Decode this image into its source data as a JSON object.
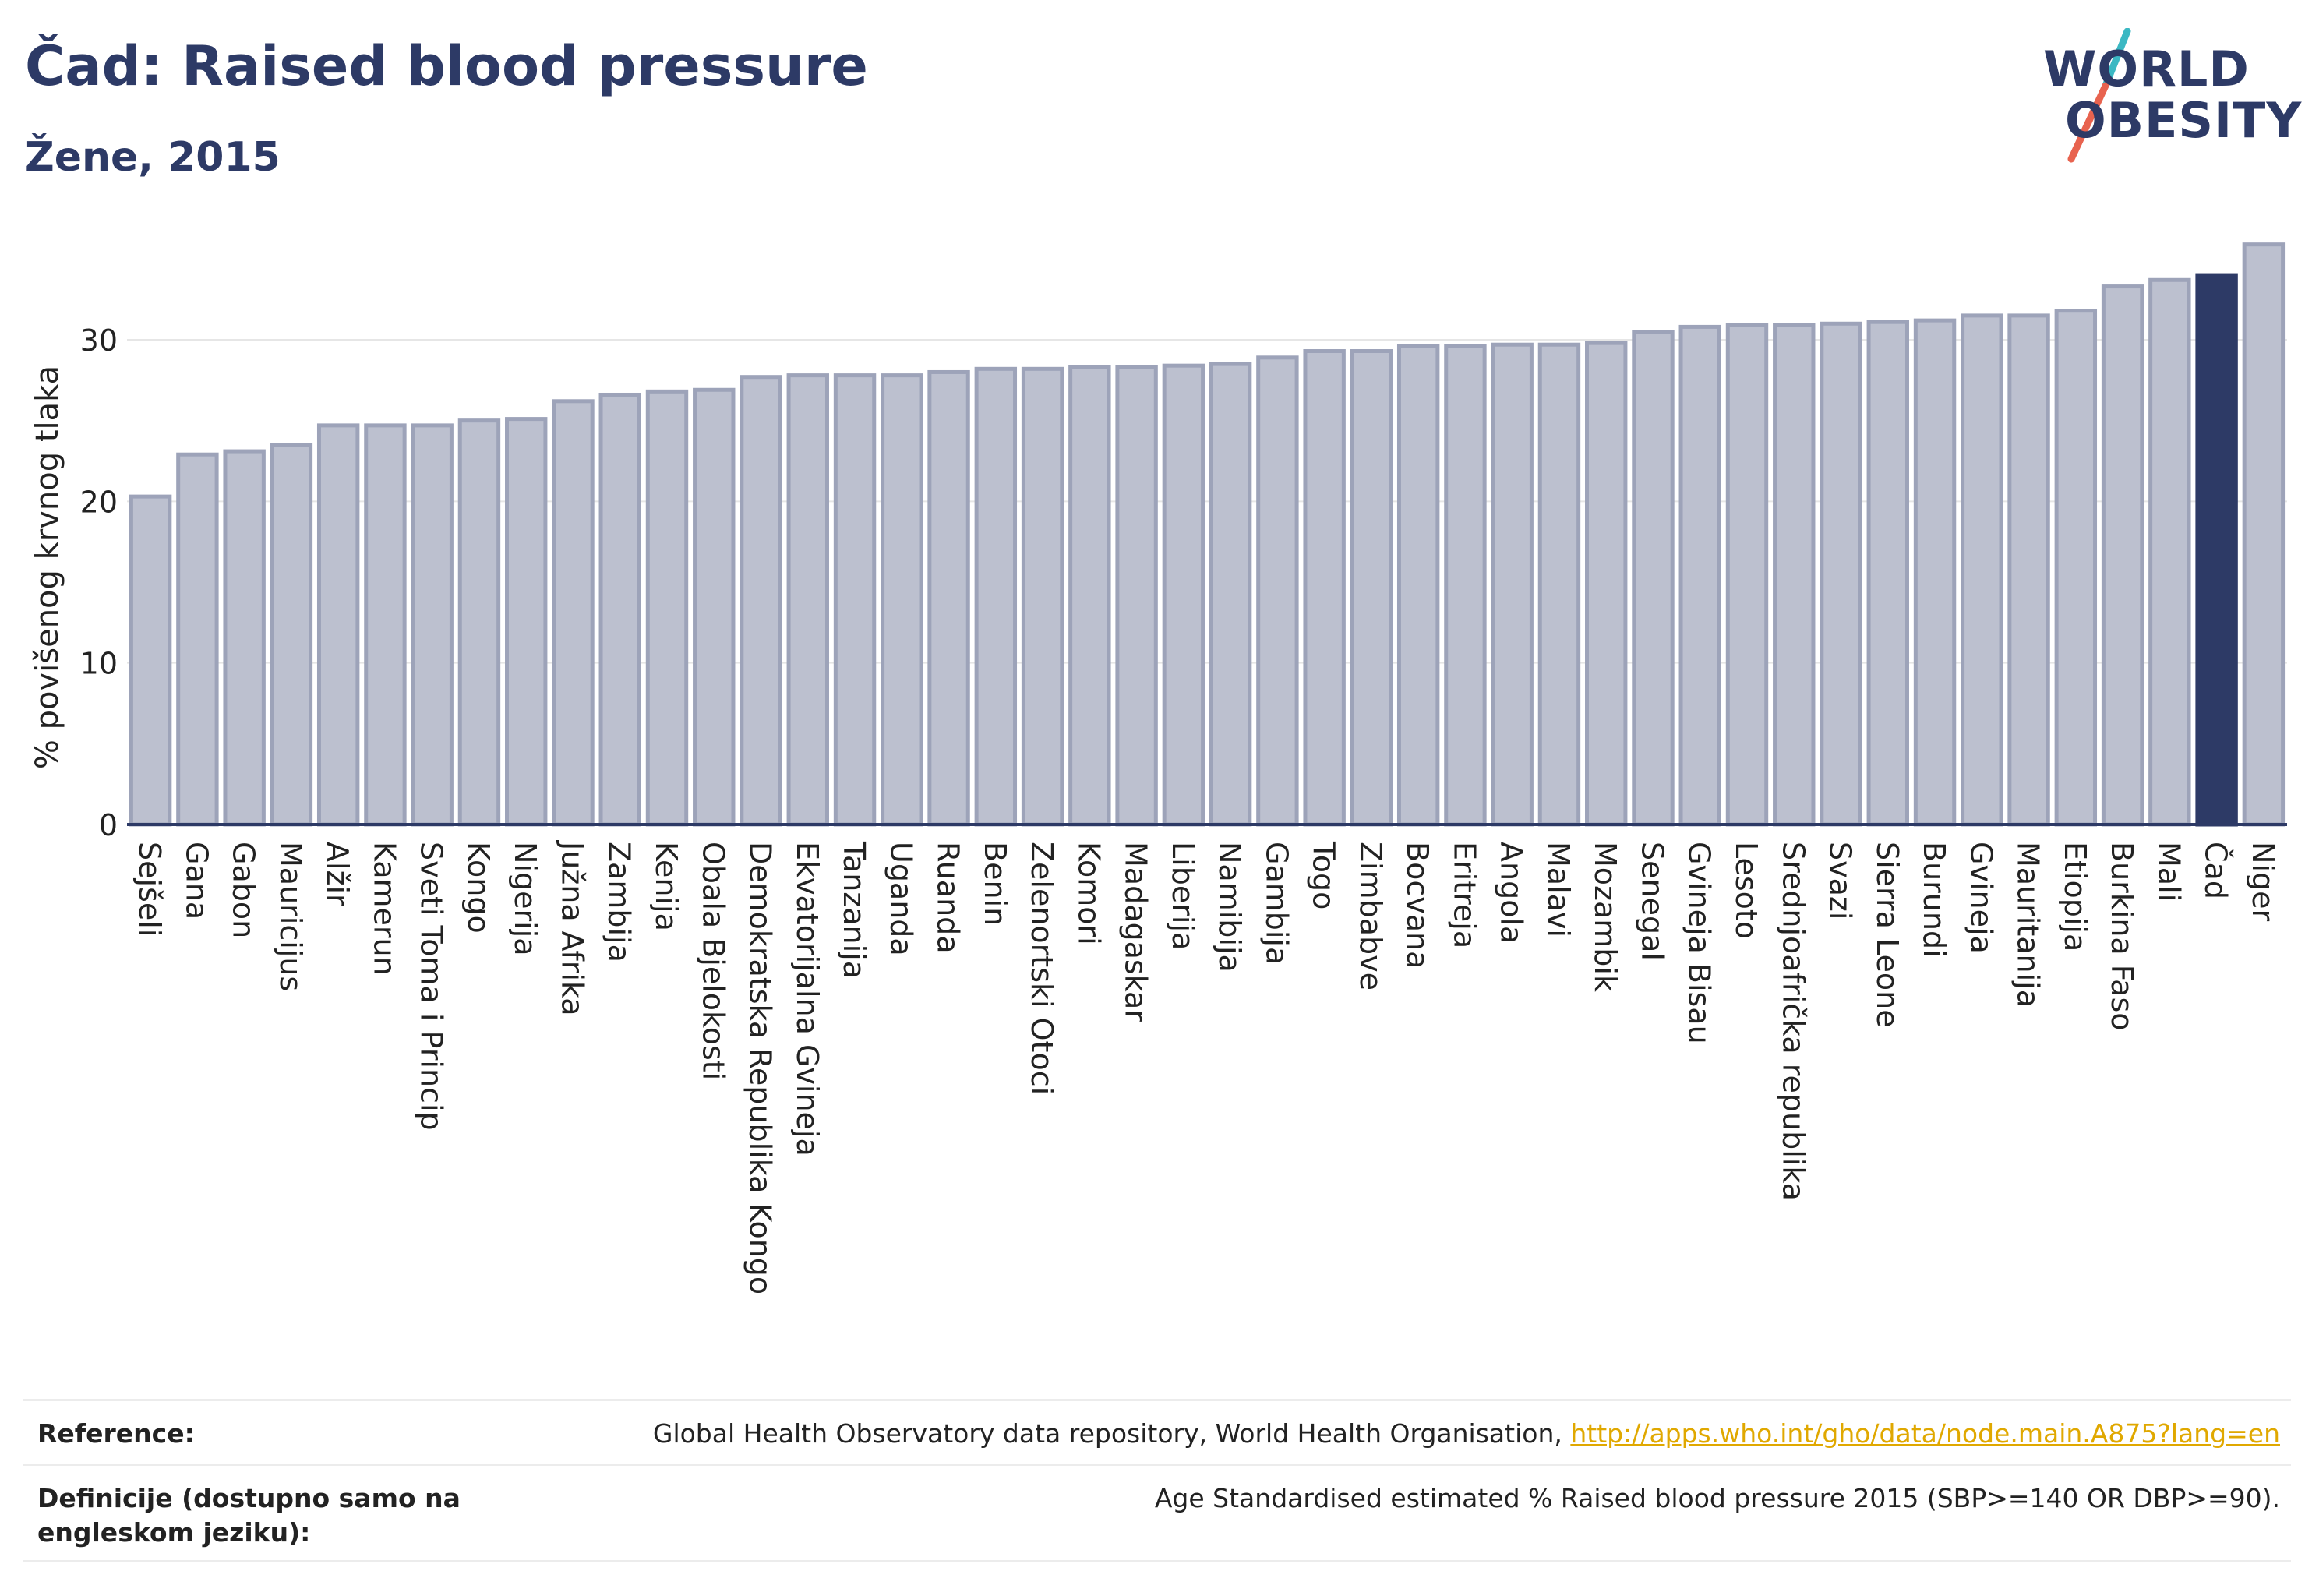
{
  "header": {
    "title": "Čad: Raised blood pressure",
    "subtitle": "Žene, 2015"
  },
  "logo": {
    "line1": "WORLD",
    "line2": "OBESITY",
    "colors": {
      "text": "#2d3a66",
      "slash_top": "#3bb8c3",
      "slash_bottom": "#e8634f"
    }
  },
  "colors": {
    "bar": "#bcc0cf",
    "bar_stroke": "#9da3b9",
    "highlight": "#2d3a66",
    "axis": "#2d3a66",
    "grid": "#e6e6e6",
    "link": "#e0a800"
  },
  "chart_data": {
    "type": "bar",
    "ylabel": "% povišenog krvnog tlaka",
    "ylim": [
      0,
      37
    ],
    "yticks": [
      0,
      10,
      20,
      30
    ],
    "grid": true,
    "highlight": "Čad",
    "categories": [
      "Sejšeli",
      "Gana",
      "Gabon",
      "Mauricijus",
      "Alžir",
      "Kamerun",
      "Sveti Toma i Princip",
      "Kongo",
      "Nigerija",
      "Južna Afrika",
      "Zambija",
      "Kenija",
      "Obala Bjelokosti",
      "Demokratska Republika Kongo",
      "Ekvatorijalna Gvineja",
      "Tanzanija",
      "Uganda",
      "Ruanda",
      "Benin",
      "Zelenortski Otoci",
      "Komori",
      "Madagaskar",
      "Liberija",
      "Namibija",
      "Gambija",
      "Togo",
      "Zimbabve",
      "Bocvana",
      "Eritreja",
      "Angola",
      "Malavi",
      "Mozambik",
      "Senegal",
      "Gvineja Bisau",
      "Lesoto",
      "Srednjoafrička republika",
      "Svazi",
      "Sierra Leone",
      "Burundi",
      "Gvineja",
      "Mauritanija",
      "Etiopija",
      "Burkina Faso",
      "Mali",
      "Čad",
      "Niger"
    ],
    "values": [
      20.3,
      22.9,
      23.1,
      23.5,
      24.7,
      24.7,
      24.7,
      25.0,
      25.1,
      26.2,
      26.6,
      26.8,
      26.9,
      27.7,
      27.8,
      27.8,
      27.8,
      28.0,
      28.2,
      28.2,
      28.3,
      28.3,
      28.4,
      28.5,
      28.9,
      29.3,
      29.3,
      29.6,
      29.6,
      29.7,
      29.7,
      29.8,
      30.5,
      30.8,
      30.9,
      30.9,
      31.0,
      31.1,
      31.2,
      31.5,
      31.5,
      31.8,
      33.3,
      33.7,
      34.0,
      35.9
    ]
  },
  "footer": {
    "reference_label": "Reference:",
    "reference_text": "Global Health Observatory data repository, World Health Organisation, ",
    "reference_link": "http://apps.who.int/gho/data/node.main.A875?lang=en",
    "definition_label": "Definicije (dostupno samo na engleskom jeziku):",
    "definition_text": "Age Standardised estimated % Raised blood pressure 2015 (SBP>=140 OR DBP>=90)."
  }
}
